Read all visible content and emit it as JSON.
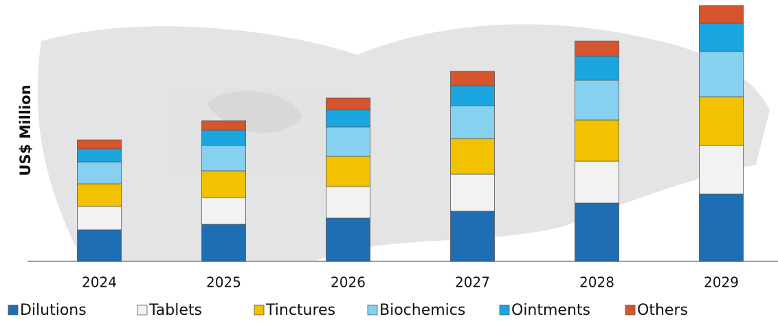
{
  "chart_data": {
    "type": "bar",
    "stacked": true,
    "y_label": "US$ Million",
    "categories": [
      "2024",
      "2025",
      "2026",
      "2027",
      "2028",
      "2029"
    ],
    "series": [
      {
        "name": "Dilutions",
        "color": "#1f6db3",
        "values": [
          46,
          54,
          63,
          73,
          85,
          98
        ]
      },
      {
        "name": "Tablets",
        "color": "#f2f2f2",
        "values": [
          34,
          39,
          46,
          54,
          61,
          71
        ]
      },
      {
        "name": "Tinctures",
        "color": "#f2c200",
        "values": [
          33,
          39,
          44,
          52,
          60,
          71
        ]
      },
      {
        "name": "Biochemics",
        "color": "#86d0f0",
        "values": [
          32,
          37,
          43,
          48,
          58,
          66
        ]
      },
      {
        "name": "Ointments",
        "color": "#1ba6e0",
        "values": [
          19,
          22,
          25,
          29,
          35,
          41
        ]
      },
      {
        "name": "Others",
        "color": "#d4552e",
        "values": [
          13,
          14,
          17,
          21,
          22,
          26
        ]
      }
    ],
    "ylim": [
      0,
      381
    ]
  }
}
